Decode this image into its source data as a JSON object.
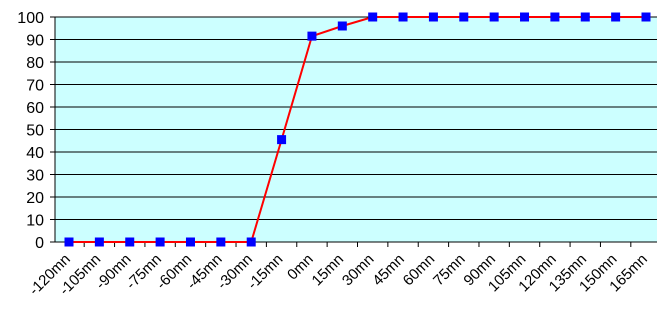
{
  "chart_data": {
    "type": "line",
    "title": "",
    "xlabel": "",
    "ylabel": "",
    "ylim": [
      0,
      100
    ],
    "yticks": [
      0,
      10,
      20,
      30,
      40,
      50,
      60,
      70,
      80,
      90,
      100
    ],
    "grid": "horizontal",
    "legend": "none",
    "categories": [
      "-120mn",
      "-105mn",
      "-90mn",
      "-75mn",
      "-60mn",
      "-45mn",
      "-30mn",
      "-15mn",
      "0mn",
      "15mn",
      "30mn",
      "45mn",
      "60mn",
      "75mn",
      "90mn",
      "105mn",
      "120mn",
      "135mn",
      "150mn",
      "165mn"
    ],
    "series": [
      {
        "values": [
          0,
          0,
          0,
          0,
          0,
          0,
          0,
          45.5,
          91.5,
          96,
          100,
          100,
          100,
          100,
          100,
          100,
          100,
          100,
          100,
          100
        ]
      }
    ],
    "colors": {
      "plot_bg": "#ccffff",
      "line": "#ff0000",
      "marker": "#0000ff",
      "grid": "#000000"
    }
  }
}
